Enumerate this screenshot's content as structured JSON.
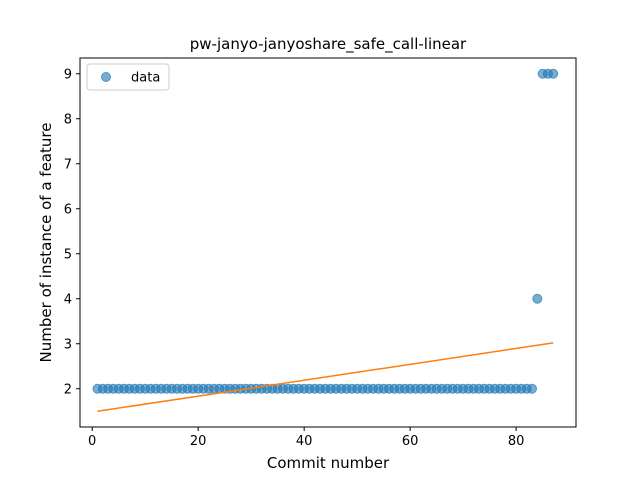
{
  "chart_data": {
    "type": "scatter",
    "title": "pw-janyo-janyoshare_safe_call-linear",
    "xlabel": "Commit number",
    "ylabel": "Number of instance of a feature",
    "xlim": [
      -2.3,
      91.3
    ],
    "ylim": [
      1.15,
      9.35
    ],
    "xticks": [
      0,
      20,
      40,
      60,
      80
    ],
    "yticks": [
      2,
      3,
      4,
      5,
      6,
      7,
      8,
      9
    ],
    "grid": false,
    "legend_position": "top-left",
    "series": [
      {
        "name": "data",
        "kind": "scatter",
        "color": "#1f77b4",
        "x": [
          1,
          2,
          3,
          4,
          5,
          6,
          7,
          8,
          9,
          10,
          11,
          12,
          13,
          14,
          15,
          16,
          17,
          18,
          19,
          20,
          21,
          22,
          23,
          24,
          25,
          26,
          27,
          28,
          29,
          30,
          31,
          32,
          33,
          34,
          35,
          36,
          37,
          38,
          39,
          40,
          41,
          42,
          43,
          44,
          45,
          46,
          47,
          48,
          49,
          50,
          51,
          52,
          53,
          54,
          55,
          56,
          57,
          58,
          59,
          60,
          61,
          62,
          63,
          64,
          65,
          66,
          67,
          68,
          69,
          70,
          71,
          72,
          73,
          74,
          75,
          76,
          77,
          78,
          79,
          80,
          81,
          82,
          83,
          84,
          85,
          86,
          87
        ],
        "y": [
          2,
          2,
          2,
          2,
          2,
          2,
          2,
          2,
          2,
          2,
          2,
          2,
          2,
          2,
          2,
          2,
          2,
          2,
          2,
          2,
          2,
          2,
          2,
          2,
          2,
          2,
          2,
          2,
          2,
          2,
          2,
          2,
          2,
          2,
          2,
          2,
          2,
          2,
          2,
          2,
          2,
          2,
          2,
          2,
          2,
          2,
          2,
          2,
          2,
          2,
          2,
          2,
          2,
          2,
          2,
          2,
          2,
          2,
          2,
          2,
          2,
          2,
          2,
          2,
          2,
          2,
          2,
          2,
          2,
          2,
          2,
          2,
          2,
          2,
          2,
          2,
          2,
          2,
          2,
          2,
          2,
          2,
          2,
          4,
          9,
          9,
          9
        ]
      },
      {
        "kind": "line",
        "color": "#ff7f0e",
        "x": [
          1,
          87
        ],
        "y": [
          1.5,
          3.02
        ]
      }
    ]
  }
}
